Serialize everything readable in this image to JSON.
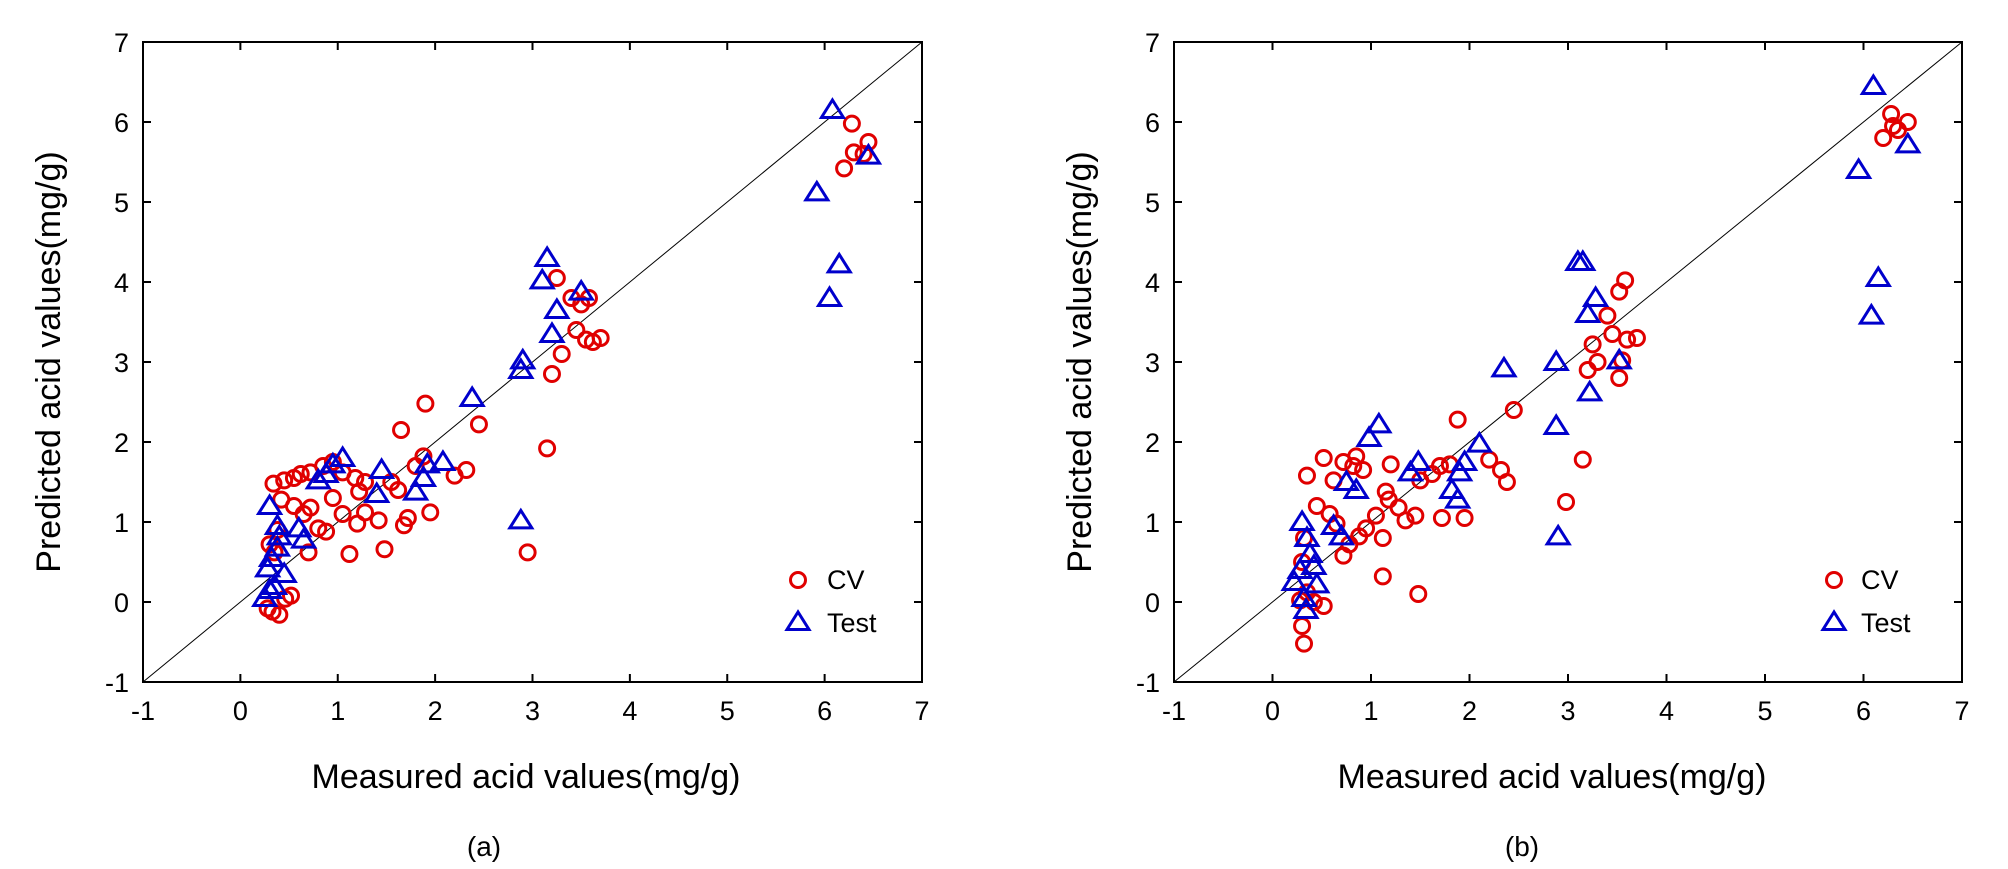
{
  "chart_data": [
    {
      "type": "scatter",
      "caption": "(a)",
      "xlabel": "Measured acid values(mg/g)",
      "ylabel": "Predicted acid values(mg/g)",
      "xlim": [
        -1,
        7
      ],
      "ylim": [
        -1,
        7
      ],
      "xticks": [
        "-1",
        "0",
        "1",
        "2",
        "3",
        "4",
        "5",
        "6",
        "7"
      ],
      "yticks": [
        "-1",
        "0",
        "1",
        "2",
        "3",
        "4",
        "5",
        "6",
        "7"
      ],
      "reference_line": "y = x",
      "legend": {
        "placement": "bottom-right",
        "entries": [
          "CV",
          "Test"
        ]
      },
      "series": [
        {
          "name": "CV",
          "marker": "circle",
          "color": "#e00000",
          "points": [
            [
              0.28,
              -0.08
            ],
            [
              0.33,
              -0.12
            ],
            [
              0.4,
              -0.16
            ],
            [
              0.46,
              0.04
            ],
            [
              0.52,
              0.08
            ],
            [
              0.35,
              0.62
            ],
            [
              0.3,
              0.72
            ],
            [
              0.38,
              0.9
            ],
            [
              0.42,
              1.28
            ],
            [
              0.34,
              1.48
            ],
            [
              0.45,
              1.52
            ],
            [
              0.55,
              1.55
            ],
            [
              0.62,
              1.6
            ],
            [
              0.72,
              1.62
            ],
            [
              0.85,
              1.7
            ],
            [
              0.95,
              1.75
            ],
            [
              1.05,
              1.62
            ],
            [
              1.18,
              1.55
            ],
            [
              1.28,
              1.5
            ],
            [
              0.55,
              1.2
            ],
            [
              0.65,
              1.1
            ],
            [
              0.72,
              1.18
            ],
            [
              0.8,
              0.92
            ],
            [
              0.88,
              0.88
            ],
            [
              0.95,
              1.3
            ],
            [
              1.05,
              1.1
            ],
            [
              1.12,
              0.6
            ],
            [
              1.2,
              0.98
            ],
            [
              1.22,
              1.38
            ],
            [
              1.28,
              1.12
            ],
            [
              1.42,
              1.02
            ],
            [
              1.48,
              0.66
            ],
            [
              1.55,
              1.5
            ],
            [
              1.62,
              1.4
            ],
            [
              1.68,
              0.96
            ],
            [
              1.72,
              1.05
            ],
            [
              1.8,
              1.7
            ],
            [
              1.88,
              1.82
            ],
            [
              1.95,
              1.12
            ],
            [
              1.9,
              2.48
            ],
            [
              1.65,
              2.15
            ],
            [
              2.2,
              1.58
            ],
            [
              2.32,
              1.65
            ],
            [
              2.45,
              2.22
            ],
            [
              0.7,
              0.62
            ],
            [
              2.95,
              0.62
            ],
            [
              3.15,
              1.92
            ],
            [
              3.2,
              2.85
            ],
            [
              3.3,
              3.1
            ],
            [
              3.45,
              3.4
            ],
            [
              3.55,
              3.28
            ],
            [
              3.62,
              3.25
            ],
            [
              3.7,
              3.3
            ],
            [
              3.5,
              3.72
            ],
            [
              3.58,
              3.8
            ],
            [
              3.25,
              4.05
            ],
            [
              3.4,
              3.8
            ],
            [
              6.2,
              5.42
            ],
            [
              6.3,
              5.62
            ],
            [
              6.4,
              5.6
            ],
            [
              6.45,
              5.75
            ],
            [
              6.28,
              5.98
            ]
          ]
        },
        {
          "name": "Test",
          "marker": "triangle",
          "color": "#0000cc",
          "points": [
            [
              0.25,
              0.05
            ],
            [
              0.3,
              0.15
            ],
            [
              0.35,
              0.2
            ],
            [
              0.28,
              0.42
            ],
            [
              0.32,
              0.55
            ],
            [
              0.38,
              0.68
            ],
            [
              0.4,
              0.82
            ],
            [
              0.45,
              0.35
            ],
            [
              0.3,
              1.2
            ],
            [
              0.38,
              0.95
            ],
            [
              0.6,
              0.92
            ],
            [
              0.65,
              0.78
            ],
            [
              0.8,
              1.52
            ],
            [
              0.88,
              1.6
            ],
            [
              0.95,
              1.72
            ],
            [
              1.05,
              1.8
            ],
            [
              1.4,
              1.35
            ],
            [
              1.45,
              1.65
            ],
            [
              1.8,
              1.38
            ],
            [
              1.88,
              1.55
            ],
            [
              1.92,
              1.72
            ],
            [
              2.08,
              1.75
            ],
            [
              2.38,
              2.55
            ],
            [
              2.88,
              2.9
            ],
            [
              2.9,
              3.02
            ],
            [
              2.88,
              1.02
            ],
            [
              3.1,
              4.02
            ],
            [
              3.15,
              4.3
            ],
            [
              3.2,
              3.35
            ],
            [
              3.25,
              3.65
            ],
            [
              3.5,
              3.88
            ],
            [
              5.92,
              5.12
            ],
            [
              6.08,
              6.15
            ],
            [
              6.05,
              3.8
            ],
            [
              6.15,
              4.22
            ],
            [
              6.45,
              5.58
            ]
          ]
        }
      ]
    },
    {
      "type": "scatter",
      "caption": "(b)",
      "xlabel": "Measured acid values(mg/g)",
      "ylabel": "Predicted acid values(mg/g)",
      "xlim": [
        -1,
        7
      ],
      "ylim": [
        -1,
        7
      ],
      "xticks": [
        "-1",
        "0",
        "1",
        "2",
        "3",
        "4",
        "5",
        "6",
        "7"
      ],
      "yticks": [
        "-1",
        "0",
        "1",
        "2",
        "3",
        "4",
        "5",
        "6",
        "7"
      ],
      "reference_line": "y = x",
      "legend": {
        "placement": "bottom-right",
        "entries": [
          "CV",
          "Test"
        ]
      },
      "series": [
        {
          "name": "CV",
          "marker": "circle",
          "color": "#e00000",
          "points": [
            [
              0.32,
              -0.52
            ],
            [
              0.3,
              -0.3
            ],
            [
              0.28,
              0.02
            ],
            [
              0.35,
              0.12
            ],
            [
              0.42,
              0.0
            ],
            [
              0.52,
              -0.05
            ],
            [
              0.3,
              0.5
            ],
            [
              0.32,
              0.8
            ],
            [
              0.35,
              1.58
            ],
            [
              0.45,
              1.2
            ],
            [
              0.52,
              1.8
            ],
            [
              0.62,
              1.52
            ],
            [
              0.72,
              1.75
            ],
            [
              0.82,
              1.7
            ],
            [
              0.85,
              1.82
            ],
            [
              0.92,
              1.65
            ],
            [
              0.58,
              1.1
            ],
            [
              0.65,
              0.98
            ],
            [
              0.72,
              0.58
            ],
            [
              0.78,
              0.72
            ],
            [
              0.88,
              0.82
            ],
            [
              0.95,
              0.92
            ],
            [
              1.05,
              1.08
            ],
            [
              1.12,
              0.8
            ],
            [
              1.15,
              1.38
            ],
            [
              1.18,
              1.28
            ],
            [
              1.2,
              1.72
            ],
            [
              1.28,
              1.18
            ],
            [
              1.35,
              1.02
            ],
            [
              1.45,
              1.08
            ],
            [
              1.5,
              1.52
            ],
            [
              1.48,
              0.1
            ],
            [
              1.12,
              0.32
            ],
            [
              1.62,
              1.6
            ],
            [
              1.7,
              1.7
            ],
            [
              1.72,
              1.05
            ],
            [
              1.8,
              1.72
            ],
            [
              1.88,
              2.28
            ],
            [
              1.95,
              1.05
            ],
            [
              2.2,
              1.78
            ],
            [
              2.32,
              1.65
            ],
            [
              2.38,
              1.5
            ],
            [
              2.45,
              2.4
            ],
            [
              2.98,
              1.25
            ],
            [
              3.15,
              1.78
            ],
            [
              3.2,
              2.9
            ],
            [
              3.25,
              3.22
            ],
            [
              3.3,
              3.0
            ],
            [
              3.45,
              3.35
            ],
            [
              3.52,
              2.8
            ],
            [
              3.55,
              3.02
            ],
            [
              3.6,
              3.28
            ],
            [
              3.7,
              3.3
            ],
            [
              3.4,
              3.58
            ],
            [
              3.52,
              3.88
            ],
            [
              3.58,
              4.02
            ],
            [
              6.2,
              5.8
            ],
            [
              6.28,
              6.1
            ],
            [
              6.35,
              5.9
            ],
            [
              6.45,
              6.0
            ],
            [
              6.3,
              5.95
            ]
          ]
        },
        {
          "name": "Test",
          "marker": "triangle",
          "color": "#0000cc",
          "points": [
            [
              0.22,
              0.25
            ],
            [
              0.28,
              0.4
            ],
            [
              0.32,
              0.05
            ],
            [
              0.34,
              -0.1
            ],
            [
              0.38,
              0.6
            ],
            [
              0.42,
              0.45
            ],
            [
              0.45,
              0.22
            ],
            [
              0.3,
              1.0
            ],
            [
              0.35,
              0.8
            ],
            [
              0.62,
              0.95
            ],
            [
              0.7,
              0.82
            ],
            [
              0.75,
              1.5
            ],
            [
              0.85,
              1.4
            ],
            [
              0.98,
              2.05
            ],
            [
              1.08,
              2.22
            ],
            [
              1.4,
              1.62
            ],
            [
              1.48,
              1.75
            ],
            [
              1.82,
              1.4
            ],
            [
              1.88,
              1.28
            ],
            [
              1.9,
              1.62
            ],
            [
              1.95,
              1.75
            ],
            [
              2.1,
              1.98
            ],
            [
              2.35,
              2.92
            ],
            [
              2.88,
              3.0
            ],
            [
              2.88,
              2.2
            ],
            [
              2.9,
              0.82
            ],
            [
              3.1,
              4.25
            ],
            [
              3.15,
              4.25
            ],
            [
              3.2,
              3.6
            ],
            [
              3.22,
              2.62
            ],
            [
              3.28,
              3.8
            ],
            [
              3.52,
              3.02
            ],
            [
              5.95,
              5.4
            ],
            [
              6.1,
              6.45
            ],
            [
              6.08,
              3.58
            ],
            [
              6.15,
              4.05
            ],
            [
              6.45,
              5.72
            ]
          ]
        }
      ]
    }
  ]
}
